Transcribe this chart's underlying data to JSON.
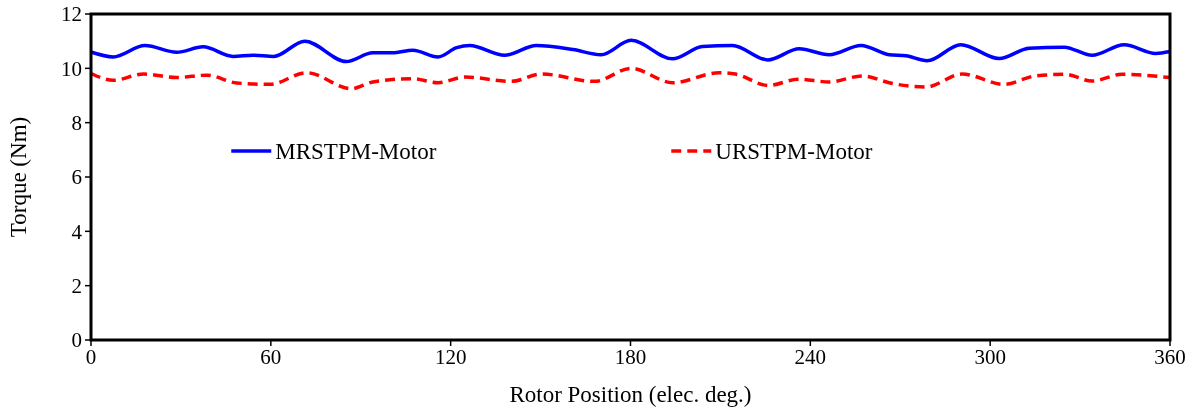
{
  "chart_data": {
    "type": "line",
    "xlabel": "Rotor Position (elec. deg.)",
    "ylabel": "Torque (Nm)",
    "xlim": [
      0,
      360
    ],
    "xticks": [
      0,
      60,
      120,
      180,
      240,
      300,
      360
    ],
    "ylim": [
      0,
      12
    ],
    "yticks": [
      0,
      2,
      4,
      6,
      8,
      10,
      12
    ],
    "grid": false,
    "legend": "center",
    "marker": "none",
    "series": [
      {
        "name": "MRSTPM-Motor",
        "color": "#0000ff",
        "line_style": "solid",
        "x": [
          0,
          7.4,
          18,
          28.6,
          37.4,
          47.4,
          54,
          61,
          71.3,
          85.2,
          94,
          100.6,
          107.4,
          115.8,
          122,
          126.3,
          138,
          148.6,
          160.8,
          170.2,
          180.2,
          194,
          204,
          214,
          225.8,
          236.3,
          246.3,
          256.9,
          266.3,
          271.9,
          279,
          290.2,
          303,
          313,
          324.7,
          334,
          344.7,
          355.2,
          360
        ],
        "values": [
          10.6,
          10.42,
          10.84,
          10.59,
          10.79,
          10.44,
          10.48,
          10.44,
          11.0,
          10.25,
          10.57,
          10.57,
          10.67,
          10.42,
          10.76,
          10.84,
          10.48,
          10.84,
          10.69,
          10.5,
          11.03,
          10.35,
          10.8,
          10.84,
          10.31,
          10.72,
          10.5,
          10.84,
          10.5,
          10.46,
          10.28,
          10.87,
          10.36,
          10.74,
          10.78,
          10.48,
          10.87,
          10.55,
          10.62
        ]
      },
      {
        "name": "URSTPM-Motor",
        "color": "#ff0000",
        "line_style": "dashed",
        "x": [
          0,
          7.4,
          17.6,
          28.6,
          38.6,
          48.6,
          59.8,
          71.9,
          86.9,
          94,
          107.4,
          115.8,
          124.8,
          140.3,
          150.3,
          168,
          180.2,
          194,
          209.6,
          215,
          226,
          236,
          246.3,
          257.4,
          267.4,
          278.5,
          290.7,
          304.6,
          315,
          325,
          334,
          344,
          360
        ],
        "values": [
          9.81,
          9.56,
          9.79,
          9.66,
          9.75,
          9.46,
          9.41,
          9.84,
          9.25,
          9.5,
          9.62,
          9.47,
          9.68,
          9.52,
          9.79,
          9.52,
          10.0,
          9.47,
          9.84,
          9.79,
          9.37,
          9.6,
          9.5,
          9.72,
          9.44,
          9.31,
          9.79,
          9.41,
          9.72,
          9.78,
          9.53,
          9.78,
          9.66
        ]
      }
    ]
  }
}
